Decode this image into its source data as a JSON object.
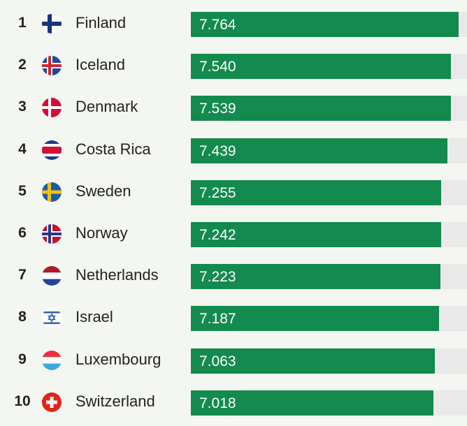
{
  "chart_data": {
    "type": "bar",
    "orientation": "horizontal",
    "xlim": [
      0,
      8
    ],
    "bar_color": "#138a4e",
    "track_color": "#e9e9e9",
    "rows": [
      {
        "rank": "1",
        "country": "Finland",
        "value": 7.764,
        "label": "7.764",
        "flag": "finland"
      },
      {
        "rank": "2",
        "country": "Iceland",
        "value": 7.54,
        "label": "7.540",
        "flag": "iceland"
      },
      {
        "rank": "3",
        "country": "Denmark",
        "value": 7.539,
        "label": "7.539",
        "flag": "denmark"
      },
      {
        "rank": "4",
        "country": "Costa Rica",
        "value": 7.439,
        "label": "7.439",
        "flag": "costa-rica"
      },
      {
        "rank": "5",
        "country": "Sweden",
        "value": 7.255,
        "label": "7.255",
        "flag": "sweden"
      },
      {
        "rank": "6",
        "country": "Norway",
        "value": 7.242,
        "label": "7.242",
        "flag": "norway"
      },
      {
        "rank": "7",
        "country": "Netherlands",
        "value": 7.223,
        "label": "7.223",
        "flag": "netherlands"
      },
      {
        "rank": "8",
        "country": "Israel",
        "value": 7.187,
        "label": "7.187",
        "flag": "israel"
      },
      {
        "rank": "9",
        "country": "Luxembourg",
        "value": 7.063,
        "label": "7.063",
        "flag": "luxembourg"
      },
      {
        "rank": "10",
        "country": "Switzerland",
        "value": 7.018,
        "label": "7.018",
        "flag": "switzerland"
      }
    ]
  }
}
